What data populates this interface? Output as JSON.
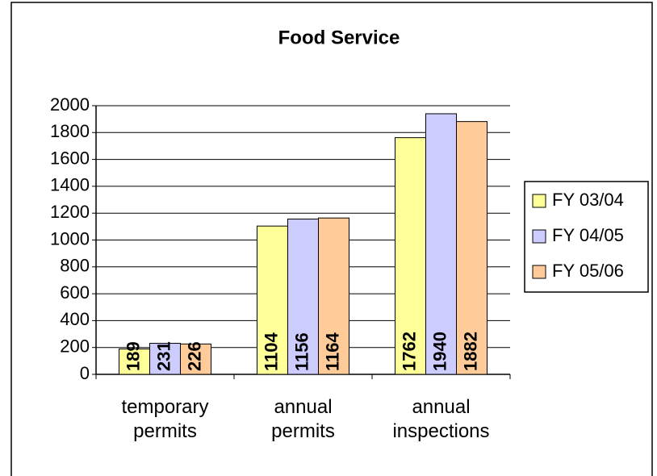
{
  "chart_data": {
    "type": "bar",
    "title": "Food Service",
    "categories": [
      "temporary permits",
      "annual permits",
      "annual inspections"
    ],
    "series": [
      {
        "name": "FY 03/04",
        "color": "#ffff99",
        "values": [
          189,
          1104,
          1762
        ]
      },
      {
        "name": "FY 04/05",
        "color": "#ccccff",
        "values": [
          231,
          1156,
          1940
        ]
      },
      {
        "name": "FY 05/06",
        "color": "#ffcc99",
        "values": [
          226,
          1164,
          1882
        ]
      }
    ],
    "ylim": [
      0,
      2000
    ],
    "yticks": [
      0,
      200,
      400,
      600,
      800,
      1000,
      1200,
      1400,
      1600,
      1800,
      2000
    ],
    "grid": true,
    "legend": "right"
  }
}
